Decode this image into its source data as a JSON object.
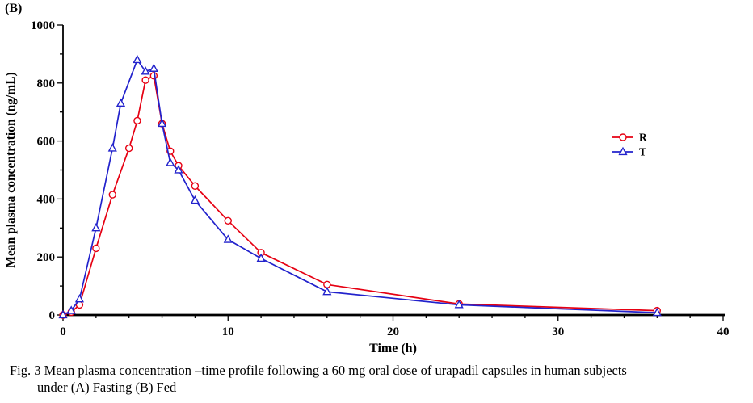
{
  "panel_label": "(B)",
  "caption": {
    "line1": "Fig. 3 Mean plasma concentration –time profile following a 60 mg oral dose of urapadil capsules in human subjects",
    "line2": "under (A) Fasting (B) Fed"
  },
  "chart_data": {
    "type": "line",
    "title": "",
    "xlabel": "Time (h)",
    "ylabel": "Mean plasma concentration (ng/mL)",
    "xlim": [
      0,
      40
    ],
    "ylim": [
      0,
      1000
    ],
    "x_major_tick_step": 10,
    "x_minor_tick_step": 2,
    "y_major_tick_step": 200,
    "y_minor_tick_step": 100,
    "grid": "off",
    "legend_position": "right",
    "axis_color": "#000000",
    "series": [
      {
        "name": "R",
        "color": "#e60012",
        "marker": "circle",
        "points": [
          [
            0,
            0
          ],
          [
            0.5,
            10
          ],
          [
            1,
            35
          ],
          [
            2,
            230
          ],
          [
            3,
            415
          ],
          [
            4,
            575
          ],
          [
            4.5,
            670
          ],
          [
            5,
            810
          ],
          [
            5.5,
            825
          ],
          [
            6,
            660
          ],
          [
            6.5,
            565
          ],
          [
            7,
            515
          ],
          [
            8,
            445
          ],
          [
            10,
            325
          ],
          [
            12,
            215
          ],
          [
            16,
            105
          ],
          [
            24,
            38
          ],
          [
            36,
            15
          ]
        ]
      },
      {
        "name": "T",
        "color": "#2222cc",
        "marker": "triangle",
        "points": [
          [
            0,
            0
          ],
          [
            0.5,
            15
          ],
          [
            1,
            55
          ],
          [
            2,
            300
          ],
          [
            3,
            575
          ],
          [
            3.5,
            730
          ],
          [
            4.5,
            880
          ],
          [
            5,
            840
          ],
          [
            5.5,
            850
          ],
          [
            6,
            660
          ],
          [
            6.5,
            525
          ],
          [
            7,
            500
          ],
          [
            8,
            395
          ],
          [
            10,
            260
          ],
          [
            12,
            195
          ],
          [
            16,
            80
          ],
          [
            24,
            35
          ],
          [
            36,
            8
          ]
        ]
      }
    ]
  }
}
